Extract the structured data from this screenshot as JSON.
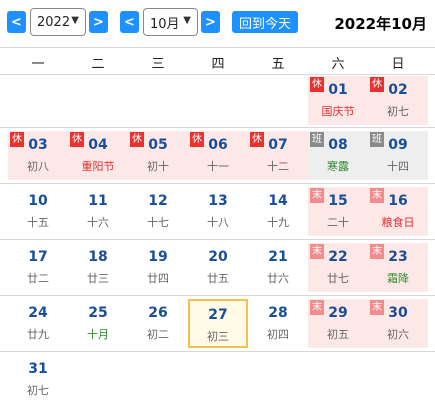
{
  "toolbar": {
    "prev_year": "<",
    "next_year": ">",
    "year_value": "2022",
    "prev_month": "<",
    "next_month": ">",
    "month_value": "10月",
    "today_label": "回到今天",
    "heading": "2022年10月"
  },
  "weekdays": [
    "一",
    "二",
    "三",
    "四",
    "五",
    "六",
    "日"
  ],
  "colors": {
    "accent": "#1e90ff",
    "date_blue": "#1a4f96",
    "holiday_bg": "#fde8e8",
    "workday_bg": "#eeeeee",
    "today_border": "#f2c14e",
    "badge_rest": "#e8322f",
    "badge_work": "#8a8a8a",
    "badge_weekend": "#f28b8b",
    "festival_red": "#e03030",
    "term_green": "#2e8b2e"
  },
  "days": [
    {
      "day": "01",
      "lunar": "国庆节",
      "badge": "休",
      "kind": "holiday",
      "lunar_style": "red"
    },
    {
      "day": "02",
      "lunar": "初七",
      "badge": "休",
      "kind": "holiday",
      "lunar_style": ""
    },
    {
      "day": "03",
      "lunar": "初八",
      "badge": "休",
      "kind": "holiday",
      "lunar_style": ""
    },
    {
      "day": "04",
      "lunar": "重阳节",
      "badge": "休",
      "kind": "holiday",
      "lunar_style": "red"
    },
    {
      "day": "05",
      "lunar": "初十",
      "badge": "休",
      "kind": "holiday",
      "lunar_style": ""
    },
    {
      "day": "06",
      "lunar": "十一",
      "badge": "休",
      "kind": "holiday",
      "lunar_style": ""
    },
    {
      "day": "07",
      "lunar": "十二",
      "badge": "休",
      "kind": "holiday",
      "lunar_style": ""
    },
    {
      "day": "08",
      "lunar": "寒露",
      "badge": "班",
      "kind": "workday",
      "lunar_style": "green"
    },
    {
      "day": "09",
      "lunar": "十四",
      "badge": "班",
      "kind": "workday",
      "lunar_style": ""
    },
    {
      "day": "10",
      "lunar": "十五",
      "badge": "",
      "kind": "",
      "lunar_style": ""
    },
    {
      "day": "11",
      "lunar": "十六",
      "badge": "",
      "kind": "",
      "lunar_style": ""
    },
    {
      "day": "12",
      "lunar": "十七",
      "badge": "",
      "kind": "",
      "lunar_style": ""
    },
    {
      "day": "13",
      "lunar": "十八",
      "badge": "",
      "kind": "",
      "lunar_style": ""
    },
    {
      "day": "14",
      "lunar": "十九",
      "badge": "",
      "kind": "",
      "lunar_style": ""
    },
    {
      "day": "15",
      "lunar": "二十",
      "badge": "末",
      "kind": "weekendrest",
      "lunar_style": ""
    },
    {
      "day": "16",
      "lunar": "粮食日",
      "badge": "末",
      "kind": "weekendrest",
      "lunar_style": "red"
    },
    {
      "day": "17",
      "lunar": "廿二",
      "badge": "",
      "kind": "",
      "lunar_style": ""
    },
    {
      "day": "18",
      "lunar": "廿三",
      "badge": "",
      "kind": "",
      "lunar_style": ""
    },
    {
      "day": "19",
      "lunar": "廿四",
      "badge": "",
      "kind": "",
      "lunar_style": ""
    },
    {
      "day": "20",
      "lunar": "廿五",
      "badge": "",
      "kind": "",
      "lunar_style": ""
    },
    {
      "day": "21",
      "lunar": "廿六",
      "badge": "",
      "kind": "",
      "lunar_style": ""
    },
    {
      "day": "22",
      "lunar": "廿七",
      "badge": "末",
      "kind": "weekendrest",
      "lunar_style": ""
    },
    {
      "day": "23",
      "lunar": "霜降",
      "badge": "末",
      "kind": "weekendrest",
      "lunar_style": "green"
    },
    {
      "day": "24",
      "lunar": "廿九",
      "badge": "",
      "kind": "",
      "lunar_style": ""
    },
    {
      "day": "25",
      "lunar": "十月",
      "badge": "",
      "kind": "",
      "lunar_style": "green"
    },
    {
      "day": "26",
      "lunar": "初二",
      "badge": "",
      "kind": "",
      "lunar_style": ""
    },
    {
      "day": "27",
      "lunar": "初三",
      "badge": "",
      "kind": "today",
      "lunar_style": ""
    },
    {
      "day": "28",
      "lunar": "初四",
      "badge": "",
      "kind": "",
      "lunar_style": ""
    },
    {
      "day": "29",
      "lunar": "初五",
      "badge": "末",
      "kind": "weekendrest",
      "lunar_style": ""
    },
    {
      "day": "30",
      "lunar": "初六",
      "badge": "末",
      "kind": "weekendrest",
      "lunar_style": ""
    },
    {
      "day": "31",
      "lunar": "初七",
      "badge": "",
      "kind": "",
      "lunar_style": ""
    }
  ]
}
